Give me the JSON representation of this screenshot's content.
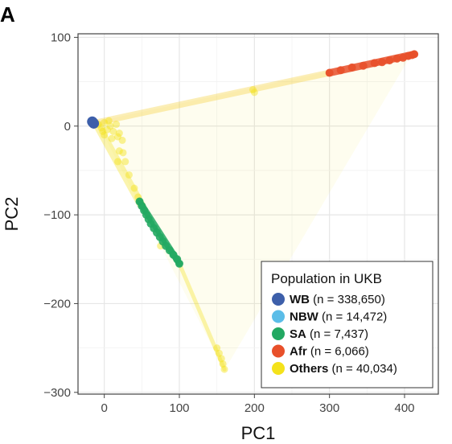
{
  "panel_label": "A",
  "chart_data": {
    "type": "scatter",
    "title": "",
    "xlabel": "PC1",
    "ylabel": "PC2",
    "xlim": [
      -35,
      445
    ],
    "ylim": [
      -302,
      104
    ],
    "xticks": [
      0,
      100,
      200,
      300,
      400
    ],
    "yticks": [
      100,
      0,
      -100,
      -200,
      -300
    ],
    "xtick_labels": [
      "0",
      "100",
      "200",
      "300",
      "400"
    ],
    "ytick_labels": [
      "100",
      "0",
      "−100",
      "−200",
      "−300"
    ],
    "grid": true,
    "legend": {
      "title": "Population in UKB",
      "placement": "bottom-right",
      "entries": [
        {
          "name": "WB",
          "count": " (n = 338,650)",
          "color": "#3d5faa"
        },
        {
          "name": "NBW",
          "count": " (n = 14,472)",
          "color": "#5bbde8"
        },
        {
          "name": "SA",
          "count": " (n = 7,437)",
          "color": "#22a862"
        },
        {
          "name": "Afr",
          "count": " (n = 6,066)",
          "color": "#e8502a"
        },
        {
          "name": "Others",
          "count": " (n = 40,034)",
          "color": "#f4e21b"
        }
      ]
    },
    "series": [
      {
        "name": "WB",
        "color": "#3d5faa",
        "points": [
          [
            -15,
            4
          ],
          [
            -14,
            3
          ],
          [
            -16,
            5
          ]
        ]
      },
      {
        "name": "SA",
        "color": "#22a862",
        "points": [
          [
            47,
            -85
          ],
          [
            50,
            -90
          ],
          [
            53,
            -95
          ],
          [
            56,
            -100
          ],
          [
            59,
            -105
          ],
          [
            62,
            -110
          ],
          [
            66,
            -115
          ],
          [
            70,
            -120
          ],
          [
            74,
            -125
          ],
          [
            78,
            -130
          ],
          [
            82,
            -135
          ],
          [
            87,
            -140
          ],
          [
            92,
            -145
          ],
          [
            97,
            -150
          ],
          [
            100,
            -155
          ]
        ]
      },
      {
        "name": "Afr",
        "color": "#e8502a",
        "points": [
          [
            300,
            60
          ],
          [
            315,
            63
          ],
          [
            330,
            66
          ],
          [
            345,
            68
          ],
          [
            360,
            71
          ],
          [
            370,
            72
          ],
          [
            380,
            74
          ],
          [
            390,
            76
          ],
          [
            398,
            77
          ],
          [
            405,
            79
          ],
          [
            410,
            80
          ],
          [
            413,
            81
          ]
        ]
      },
      {
        "name": "Others",
        "color": "#f4e21b",
        "points": [
          [
            -8,
            2
          ],
          [
            -4,
            -2
          ],
          [
            0,
            4
          ],
          [
            4,
            -4
          ],
          [
            8,
            0
          ],
          [
            12,
            -6
          ],
          [
            16,
            2
          ],
          [
            20,
            -8
          ],
          [
            -2,
            -6
          ],
          [
            6,
            6
          ],
          [
            0,
            -10
          ],
          [
            10,
            -14
          ],
          [
            18,
            -12
          ],
          [
            24,
            -16
          ],
          [
            20,
            -28
          ],
          [
            28,
            -40
          ],
          [
            33,
            -55
          ],
          [
            40,
            -70
          ],
          [
            45,
            -80
          ],
          [
            150,
            -250
          ],
          [
            153,
            -256
          ],
          [
            156,
            -262
          ],
          [
            158,
            -268
          ],
          [
            160,
            -274
          ],
          [
            198,
            41
          ],
          [
            200,
            38
          ],
          [
            18,
            -40
          ],
          [
            25,
            -30
          ],
          [
            75,
            -135
          ]
        ]
      }
    ]
  }
}
